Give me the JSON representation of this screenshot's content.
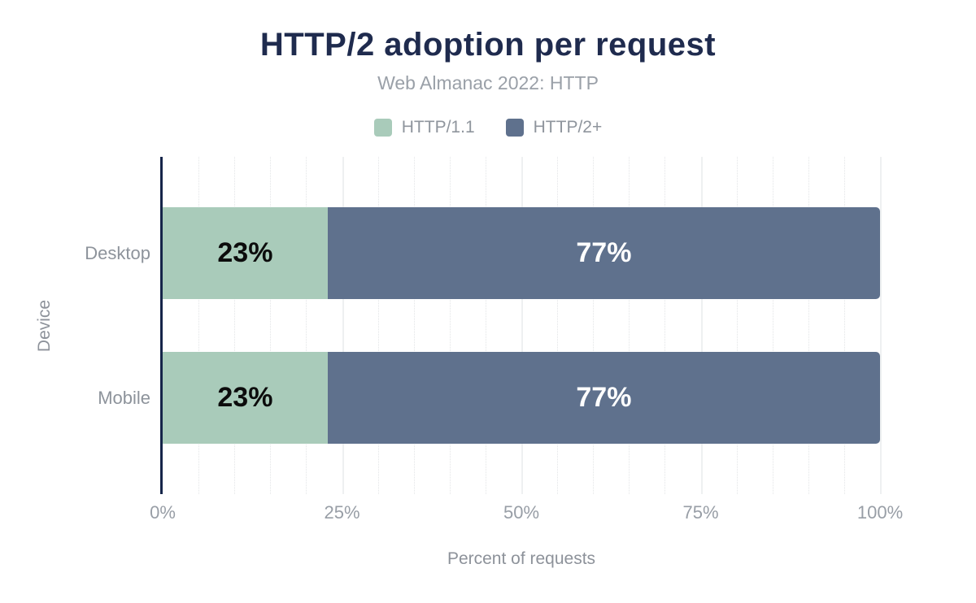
{
  "header": {
    "title": "HTTP/2 adoption per request",
    "subtitle": "Web Almanac 2022: HTTP"
  },
  "chart_data": {
    "type": "bar",
    "orientation": "horizontal",
    "stacked": true,
    "title": "HTTP/2 adoption per request",
    "subtitle": "Web Almanac 2022: HTTP",
    "categories": [
      "Desktop",
      "Mobile"
    ],
    "series": [
      {
        "name": "HTTP/1.1",
        "color": "#a9cbba",
        "values": [
          23,
          23
        ]
      },
      {
        "name": "HTTP/2+",
        "color": "#5f718d",
        "values": [
          77,
          77
        ]
      }
    ],
    "data_labels": [
      [
        "23%",
        "77%"
      ],
      [
        "23%",
        "77%"
      ]
    ],
    "xlabel": "Percent of requests",
    "ylabel": "Device",
    "xlim": [
      0,
      100
    ],
    "x_ticks": [
      "0%",
      "25%",
      "50%",
      "75%",
      "100%"
    ],
    "x_tick_values": [
      0,
      25,
      50,
      75,
      100
    ],
    "grid": {
      "minor_step": 5,
      "major_step": 25,
      "minor_style": "dotted",
      "major_style": "solid"
    },
    "legend_position": "top"
  },
  "colors": {
    "title": "#1f2b4e",
    "axis_line": "#16254a",
    "gray_text": "#8d939b",
    "background": "#ffffff",
    "label_on_light": "#0c0c0c",
    "label_on_dark": "#ffffff"
  }
}
